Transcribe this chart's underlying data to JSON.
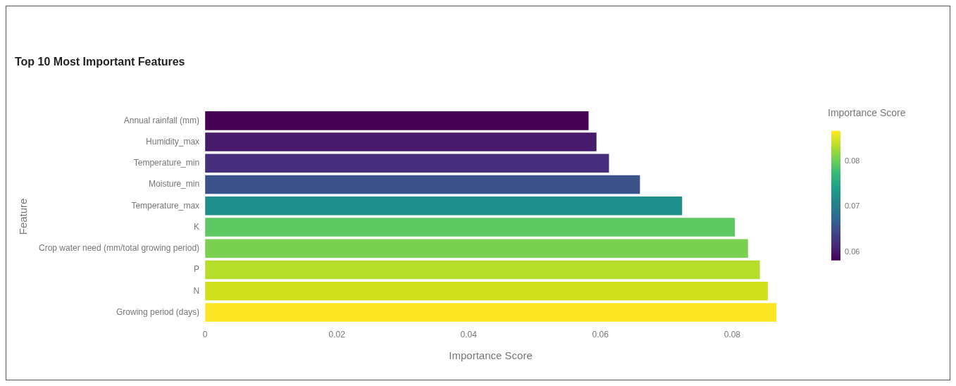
{
  "chart_data": {
    "type": "bar",
    "orientation": "horizontal",
    "title": "Top 10 Most Important Features",
    "xlabel": "Importance Score",
    "ylabel": "Feature",
    "clabel": "Importance Score",
    "categories": [
      "Annual rainfall (mm)",
      "Humidity_max",
      "Temperature_min",
      "Moisture_min",
      "Temperature_max",
      "K",
      "Crop water need (mm/total growing period)",
      "P",
      "N",
      "Growing period (days)"
    ],
    "values": [
      0.0582,
      0.0594,
      0.0613,
      0.066,
      0.0724,
      0.0804,
      0.0824,
      0.0842,
      0.0854,
      0.0867
    ],
    "colors": [
      "#440154",
      "#481a6c",
      "#472f7d",
      "#3b528b",
      "#21908d",
      "#5ec962",
      "#7ad151",
      "#b5de2b",
      "#d0e11c",
      "#fde725"
    ],
    "xlim": [
      0,
      0.0867
    ],
    "xticks": [
      0,
      0.02,
      0.04,
      0.06,
      0.08
    ],
    "clim": [
      0.0582,
      0.0867
    ],
    "cticks": [
      0.06,
      0.07,
      0.08
    ],
    "grid": false
  }
}
